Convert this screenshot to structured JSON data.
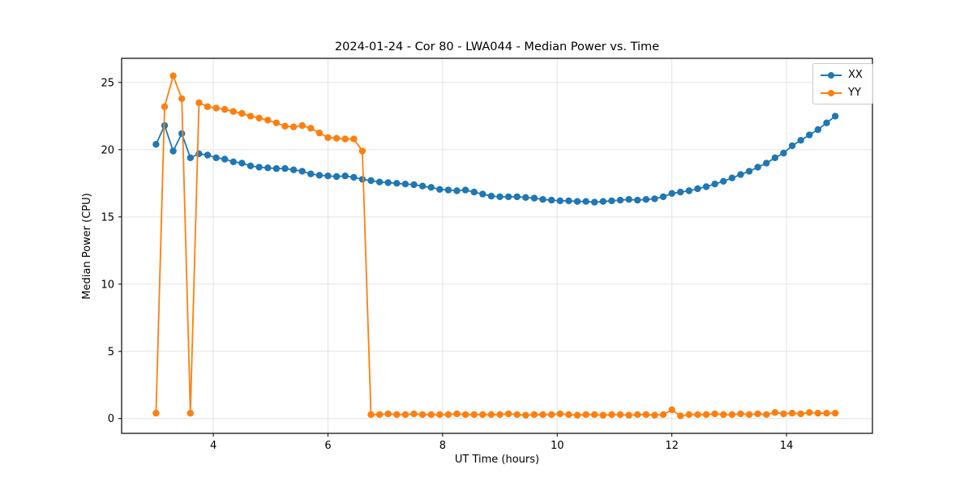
{
  "chart_data": {
    "type": "line",
    "title": "2024-01-24 - Cor 80 - LWA044 - Median Power vs. Time",
    "xlabel": "UT Time (hours)",
    "ylabel": "Median Power (CPU)",
    "xlim": [
      2.4,
      15.5
    ],
    "ylim": [
      -1.1,
      26.8
    ],
    "xticks": [
      4,
      6,
      8,
      10,
      12,
      14
    ],
    "yticks": [
      0,
      5,
      10,
      15,
      20,
      25
    ],
    "grid": true,
    "legend_position": "upper right",
    "x": [
      3.0,
      3.15,
      3.3,
      3.45,
      3.6,
      3.75,
      3.9,
      4.05,
      4.2,
      4.35,
      4.5,
      4.65,
      4.8,
      4.95,
      5.1,
      5.25,
      5.4,
      5.55,
      5.7,
      5.85,
      6.0,
      6.15,
      6.3,
      6.45,
      6.6,
      6.75,
      6.9,
      7.05,
      7.2,
      7.35,
      7.5,
      7.65,
      7.8,
      7.95,
      8.1,
      8.25,
      8.4,
      8.55,
      8.7,
      8.85,
      9.0,
      9.15,
      9.3,
      9.45,
      9.6,
      9.75,
      9.9,
      10.05,
      10.2,
      10.35,
      10.5,
      10.65,
      10.8,
      10.95,
      11.1,
      11.25,
      11.4,
      11.55,
      11.7,
      11.85,
      12.0,
      12.15,
      12.3,
      12.45,
      12.6,
      12.75,
      12.9,
      13.05,
      13.2,
      13.35,
      13.5,
      13.65,
      13.8,
      13.95,
      14.1,
      14.25,
      14.4,
      14.55,
      14.7,
      14.85
    ],
    "series": [
      {
        "name": "XX",
        "color": "#1f77b4",
        "marker": "circle",
        "values": [
          20.4,
          21.8,
          19.9,
          21.2,
          19.4,
          19.7,
          19.6,
          19.4,
          19.3,
          19.1,
          19.0,
          18.8,
          18.7,
          18.65,
          18.6,
          18.6,
          18.5,
          18.4,
          18.2,
          18.1,
          18.05,
          18.0,
          18.05,
          17.95,
          17.8,
          17.7,
          17.6,
          17.55,
          17.5,
          17.45,
          17.4,
          17.3,
          17.2,
          17.05,
          17.0,
          16.95,
          17.0,
          16.85,
          16.7,
          16.55,
          16.5,
          16.5,
          16.5,
          16.45,
          16.4,
          16.3,
          16.25,
          16.2,
          16.2,
          16.15,
          16.15,
          16.1,
          16.15,
          16.2,
          16.25,
          16.3,
          16.25,
          16.3,
          16.35,
          16.5,
          16.75,
          16.85,
          16.95,
          17.1,
          17.25,
          17.45,
          17.65,
          17.9,
          18.15,
          18.4,
          18.7,
          19.0,
          19.4,
          19.75,
          20.3,
          20.7,
          21.1,
          21.5,
          22.0,
          22.5
        ]
      },
      {
        "name": "YY",
        "color": "#ff7f0e",
        "marker": "circle",
        "values": [
          0.4,
          23.2,
          25.5,
          23.8,
          0.4,
          23.5,
          23.2,
          23.1,
          23.0,
          22.85,
          22.7,
          22.5,
          22.35,
          22.2,
          22.0,
          21.75,
          21.7,
          21.8,
          21.6,
          21.25,
          20.9,
          20.85,
          20.8,
          20.8,
          19.9,
          0.3,
          0.3,
          0.35,
          0.3,
          0.3,
          0.35,
          0.3,
          0.3,
          0.3,
          0.3,
          0.35,
          0.3,
          0.3,
          0.3,
          0.3,
          0.3,
          0.35,
          0.3,
          0.25,
          0.3,
          0.3,
          0.3,
          0.35,
          0.3,
          0.25,
          0.3,
          0.3,
          0.25,
          0.3,
          0.3,
          0.25,
          0.3,
          0.3,
          0.25,
          0.3,
          0.65,
          0.2,
          0.3,
          0.3,
          0.3,
          0.35,
          0.3,
          0.3,
          0.35,
          0.3,
          0.35,
          0.3,
          0.45,
          0.35,
          0.4,
          0.35,
          0.45,
          0.4,
          0.4,
          0.4
        ]
      }
    ]
  }
}
